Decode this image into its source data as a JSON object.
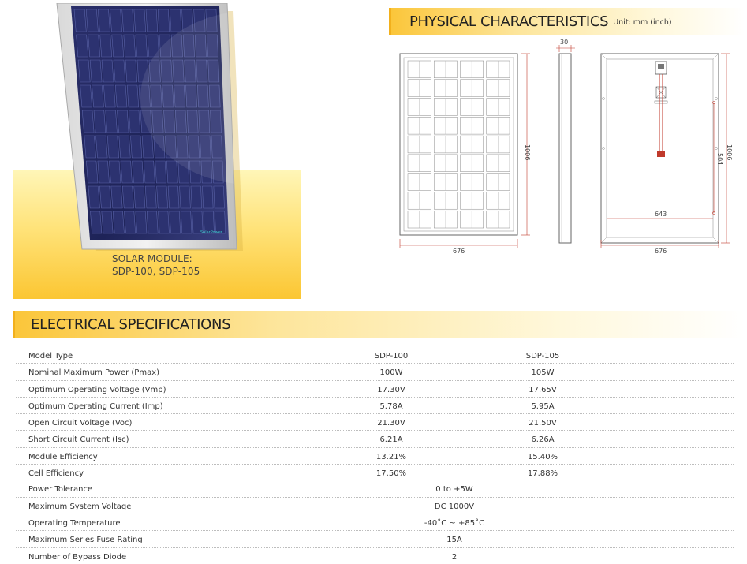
{
  "hero": {
    "caption_line1": "SOLAR MODULE:",
    "caption_line2": "SDP-100, SDP-105",
    "logo_text": "SolarPower"
  },
  "physical": {
    "title": "PHYSICAL CHARACTERISTICS",
    "unit": "Unit: mm (inch)",
    "front_width": "676",
    "front_height": "1006",
    "side_thickness": "30",
    "back_width": "676",
    "back_height": "1006",
    "back_inner_width": "643",
    "back_half_height": "504"
  },
  "electrical": {
    "title": "ELECTRICAL SPECIFICATIONS",
    "header": {
      "label": "Model Type",
      "a": "SDP-100",
      "b": "SDP-105"
    },
    "rows": [
      {
        "label": "Nominal Maximum Power (Pmax)",
        "a": "100W",
        "b": "105W"
      },
      {
        "label": "Optimum Operating Voltage (Vmp)",
        "a": "17.30V",
        "b": "17.65V"
      },
      {
        "label": "Optimum Operating Current (Imp)",
        "a": "5.78A",
        "b": "5.95A"
      },
      {
        "label": "Open Circuit Voltage (Voc)",
        "a": "21.30V",
        "b": "21.50V"
      },
      {
        "label": "Short Circuit Current (Isc)",
        "a": "6.21A",
        "b": "6.26A"
      },
      {
        "label": "Module Efficiency",
        "a": "13.21%",
        "b": "15.40%"
      },
      {
        "label": "Cell Efficiency",
        "a": "17.50%",
        "b": "17.88%"
      }
    ],
    "shared_rows": [
      {
        "label": "Power Tolerance",
        "value": "0 to +5W"
      },
      {
        "label": "Maximum System Voltage",
        "value": "DC 1000V"
      },
      {
        "label": "Operating  Temperature",
        "value": "-40˚C ~ +85˚C"
      },
      {
        "label": "Maximum Series Fuse Rating",
        "value": "15A"
      },
      {
        "label": "Number of Bypass Diode",
        "value": "2"
      }
    ]
  }
}
